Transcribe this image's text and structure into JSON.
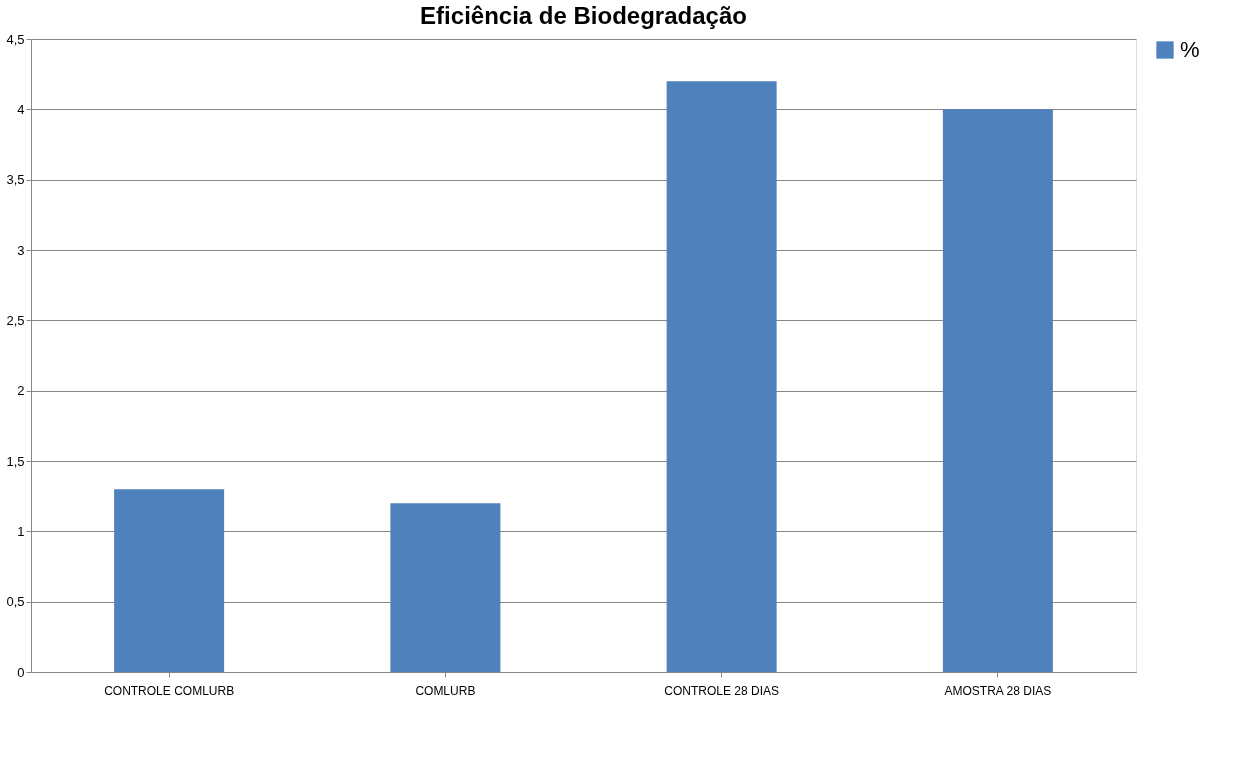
{
  "chart_data": {
    "type": "bar",
    "title": "Eficiência de Biodegradação",
    "categories": [
      "CONTROLE COMLURB",
      "COMLURB",
      "CONTROLE 28 DIAS",
      "AMOSTRA 28 DIAS"
    ],
    "series": [
      {
        "name": "%",
        "color": "#4f81bd",
        "values": [
          1.3,
          1.2,
          4.2,
          4.0
        ]
      }
    ],
    "ylim": [
      0,
      4.5
    ],
    "yticks": [
      0,
      {
        "value": 0.5,
        "label": "0,5"
      },
      1,
      {
        "value": 1.5,
        "label": "1,5"
      },
      2,
      {
        "value": 2.5,
        "label": "2,5"
      },
      3,
      {
        "value": 3.5,
        "label": "3,5"
      },
      4,
      {
        "value": 4.5,
        "label": "4,5"
      }
    ],
    "grid": "y",
    "legend": "right"
  }
}
